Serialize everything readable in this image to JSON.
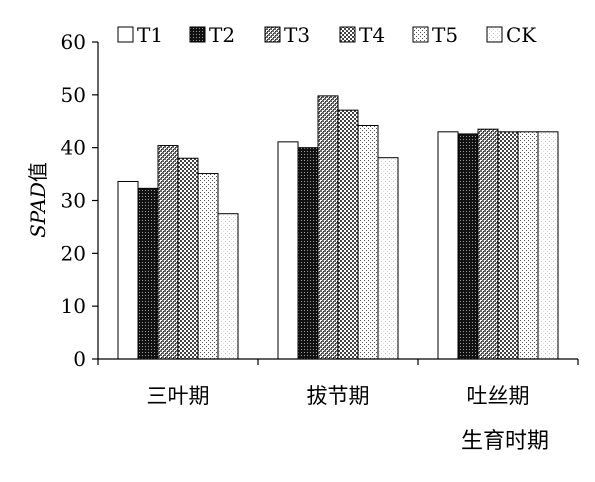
{
  "chart_data": {
    "type": "bar",
    "xlabel": "生育时期",
    "ylabel_italic": "SPAD",
    "ylabel_suffix": "值",
    "ylim": [
      0,
      60
    ],
    "yticks": [
      0,
      10,
      20,
      30,
      40,
      50,
      60
    ],
    "grid": false,
    "legend_position": "top",
    "categories": [
      "三叶期",
      "拔节期",
      "吐丝期"
    ],
    "series": [
      {
        "name": "T1",
        "pattern": "white",
        "values": [
          33.6,
          41.1,
          43.0
        ]
      },
      {
        "name": "T2",
        "pattern": "black-dots",
        "values": [
          32.3,
          40.0,
          42.6
        ]
      },
      {
        "name": "T3",
        "pattern": "dense-hatch",
        "values": [
          40.4,
          49.8,
          43.5
        ]
      },
      {
        "name": "T4",
        "pattern": "checker",
        "values": [
          38.0,
          47.1,
          43.0
        ]
      },
      {
        "name": "T5",
        "pattern": "light-dots",
        "values": [
          35.1,
          44.2,
          43.0
        ]
      },
      {
        "name": "CK",
        "pattern": "faint-dots",
        "values": [
          27.5,
          38.1,
          43.0
        ]
      }
    ]
  }
}
